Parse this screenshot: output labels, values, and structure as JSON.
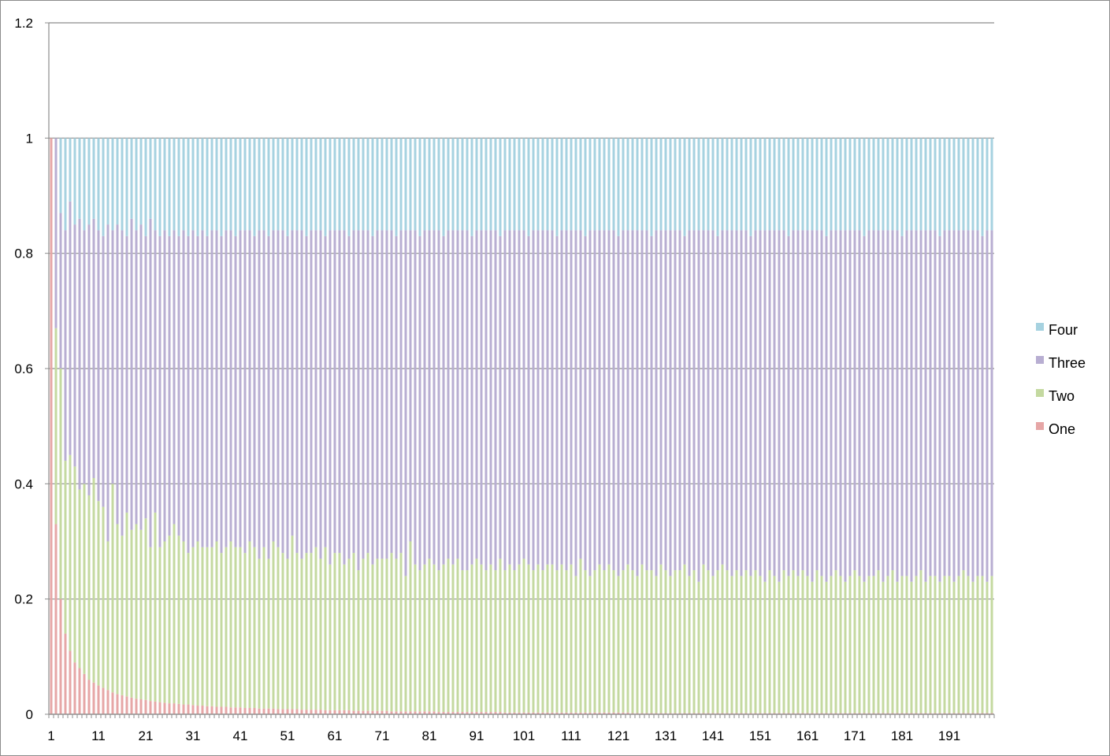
{
  "chart_data": {
    "type": "bar",
    "stacked": true,
    "normalized": true,
    "n_categories": 200,
    "x_tick_labels": [
      "1",
      "11",
      "21",
      "31",
      "41",
      "51",
      "61",
      "71",
      "81",
      "91",
      "101",
      "111",
      "121",
      "131",
      "141",
      "151",
      "161",
      "171",
      "181",
      "191"
    ],
    "y_tick_labels": [
      "0",
      "0.2",
      "0.4",
      "0.6",
      "0.8",
      "1",
      "1.2"
    ],
    "ylim": [
      0,
      1.2
    ],
    "grid": "horizontal",
    "legend_position": "right",
    "series": [
      {
        "name": "One",
        "color": "#e6a6a6"
      },
      {
        "name": "Two",
        "color": "#c4d9a0"
      },
      {
        "name": "Three",
        "color": "#b8aed2"
      },
      {
        "name": "Four",
        "color": "#a6d2e0"
      }
    ],
    "one": [
      1,
      0.33,
      0.2,
      0.14,
      0.11,
      0.09,
      0.08,
      0.07,
      0.06,
      0.055,
      0.05,
      0.046,
      0.042,
      0.038,
      0.035,
      0.033,
      0.031,
      0.029,
      0.027,
      0.026,
      0.025,
      0.023,
      0.022,
      0.021,
      0.02,
      0.019,
      0.019,
      0.018,
      0.017,
      0.017,
      0.016,
      0.015,
      0.015,
      0.014,
      0.014,
      0.013,
      0.013,
      0.013,
      0.012,
      0.012,
      0.012,
      0.011,
      0.011,
      0.011,
      0.01,
      0.01,
      0.01,
      0.01,
      0.009,
      0.009,
      0.009,
      0.009,
      0.009,
      0.008,
      0.008,
      0.008,
      0.008,
      0.008,
      0.007,
      0.007,
      0.007,
      0.007,
      0.007,
      0.007,
      0.006,
      0.006,
      0.006,
      0.006,
      0.006,
      0.006,
      0.006,
      0.006,
      0.005,
      0.005,
      0.005,
      0.005,
      0.005,
      0.005,
      0.005,
      0.005,
      0.005,
      0.005,
      0.004,
      0.004,
      0.004,
      0.004,
      0.004,
      0.004,
      0.004,
      0.004,
      0.004,
      0.004,
      0.004,
      0.004,
      0.004,
      0.004,
      0.003,
      0.003,
      0.003,
      0.003,
      0.003,
      0.003,
      0.003,
      0.003,
      0.003,
      0.003,
      0.003,
      0.003,
      0.003,
      0.003,
      0.003,
      0.003,
      0.003,
      0.003,
      0.003,
      0.003,
      0.003,
      0.003,
      0.003,
      0.003,
      0.003,
      0.003,
      0.003,
      0.002,
      0.002,
      0.002,
      0.002,
      0.002,
      0.002,
      0.002,
      0.002,
      0.002,
      0.002,
      0.002,
      0.002,
      0.002,
      0.002,
      0.002,
      0.002,
      0.002,
      0.002,
      0.002,
      0.002,
      0.002,
      0.002,
      0.002,
      0.002,
      0.002,
      0.002,
      0.002,
      0.002,
      0.002,
      0.002,
      0.002,
      0.002,
      0.002,
      0.002,
      0.002,
      0.002,
      0.002,
      0.002,
      0.002,
      0.002,
      0.002,
      0.002,
      0.002,
      0.002,
      0.002,
      0.002,
      0.002,
      0.002,
      0.002,
      0.002,
      0.002,
      0.002,
      0.002,
      0.002,
      0.002,
      0.002,
      0.002,
      0.002,
      0.002,
      0.002,
      0.002,
      0.002,
      0.002,
      0.002,
      0.002,
      0.002,
      0.002,
      0.002,
      0.002,
      0.002,
      0.002,
      0.002,
      0.002,
      0.002,
      0.002,
      0.002,
      0.002,
      0.002,
      0.002,
      0.002,
      0.002,
      0.002,
      0.002
    ],
    "cum_two": [
      1,
      0.67,
      0.6,
      0.44,
      0.45,
      0.43,
      0.39,
      0.4,
      0.38,
      0.41,
      0.37,
      0.36,
      0.3,
      0.4,
      0.33,
      0.31,
      0.35,
      0.32,
      0.33,
      0.32,
      0.34,
      0.29,
      0.35,
      0.29,
      0.3,
      0.31,
      0.33,
      0.31,
      0.3,
      0.28,
      0.29,
      0.3,
      0.29,
      0.29,
      0.29,
      0.3,
      0.28,
      0.29,
      0.3,
      0.29,
      0.29,
      0.28,
      0.3,
      0.29,
      0.27,
      0.29,
      0.27,
      0.3,
      0.29,
      0.28,
      0.27,
      0.31,
      0.28,
      0.27,
      0.28,
      0.28,
      0.29,
      0.27,
      0.29,
      0.26,
      0.28,
      0.28,
      0.26,
      0.27,
      0.28,
      0.25,
      0.27,
      0.28,
      0.26,
      0.27,
      0.27,
      0.27,
      0.28,
      0.27,
      0.28,
      0.24,
      0.3,
      0.26,
      0.25,
      0.26,
      0.27,
      0.26,
      0.25,
      0.26,
      0.27,
      0.26,
      0.27,
      0.25,
      0.25,
      0.26,
      0.27,
      0.26,
      0.25,
      0.26,
      0.25,
      0.27,
      0.25,
      0.26,
      0.25,
      0.26,
      0.27,
      0.26,
      0.25,
      0.26,
      0.25,
      0.26,
      0.26,
      0.25,
      0.26,
      0.25,
      0.26,
      0.24,
      0.27,
      0.25,
      0.24,
      0.25,
      0.26,
      0.25,
      0.26,
      0.25,
      0.24,
      0.25,
      0.26,
      0.25,
      0.24,
      0.26,
      0.25,
      0.25,
      0.24,
      0.26,
      0.25,
      0.24,
      0.25,
      0.25,
      0.26,
      0.24,
      0.25,
      0.23,
      0.26,
      0.25,
      0.24,
      0.25,
      0.26,
      0.25,
      0.24,
      0.25,
      0.24,
      0.25,
      0.24,
      0.25,
      0.24,
      0.23,
      0.25,
      0.24,
      0.23,
      0.25,
      0.24,
      0.25,
      0.24,
      0.25,
      0.24,
      0.23,
      0.25,
      0.24,
      0.23,
      0.24,
      0.25,
      0.24,
      0.23,
      0.24,
      0.25,
      0.24,
      0.23,
      0.24,
      0.24,
      0.25,
      0.23,
      0.24,
      0.25,
      0.23,
      0.24,
      0.24,
      0.23,
      0.24,
      0.25,
      0.23,
      0.24,
      0.24,
      0.23,
      0.24,
      0.24,
      0.23,
      0.24,
      0.25,
      0.24,
      0.23,
      0.24,
      0.24,
      0.23,
      0.24,
      0.24,
      0.24
    ],
    "cum_three": [
      1,
      1,
      0.87,
      0.84,
      0.89,
      0.85,
      0.86,
      0.84,
      0.85,
      0.86,
      0.84,
      0.83,
      0.85,
      0.84,
      0.85,
      0.84,
      0.83,
      0.86,
      0.84,
      0.85,
      0.83,
      0.86,
      0.84,
      0.83,
      0.84,
      0.83,
      0.84,
      0.83,
      0.84,
      0.83,
      0.84,
      0.83,
      0.84,
      0.83,
      0.84,
      0.84,
      0.83,
      0.84,
      0.84,
      0.83,
      0.84,
      0.84,
      0.84,
      0.83,
      0.84,
      0.84,
      0.83,
      0.84,
      0.84,
      0.84,
      0.83,
      0.84,
      0.84,
      0.84,
      0.83,
      0.84,
      0.84,
      0.84,
      0.83,
      0.84,
      0.84,
      0.84,
      0.84,
      0.83,
      0.84,
      0.84,
      0.84,
      0.84,
      0.83,
      0.84,
      0.84,
      0.84,
      0.84,
      0.83,
      0.84,
      0.84,
      0.84,
      0.84,
      0.83,
      0.84,
      0.84,
      0.84,
      0.84,
      0.83,
      0.84,
      0.84,
      0.84,
      0.84,
      0.84,
      0.83,
      0.84,
      0.84,
      0.84,
      0.84,
      0.84,
      0.83,
      0.84,
      0.84,
      0.84,
      0.84,
      0.84,
      0.83,
      0.84,
      0.84,
      0.84,
      0.84,
      0.84,
      0.83,
      0.84,
      0.84,
      0.84,
      0.84,
      0.84,
      0.83,
      0.84,
      0.84,
      0.84,
      0.84,
      0.84,
      0.84,
      0.83,
      0.84,
      0.84,
      0.84,
      0.84,
      0.84,
      0.84,
      0.83,
      0.84,
      0.84,
      0.84,
      0.84,
      0.84,
      0.84,
      0.83,
      0.84,
      0.84,
      0.84,
      0.84,
      0.84,
      0.84,
      0.83,
      0.84,
      0.84,
      0.84,
      0.84,
      0.84,
      0.84,
      0.83,
      0.84,
      0.84,
      0.84,
      0.84,
      0.84,
      0.84,
      0.84,
      0.83,
      0.84,
      0.84,
      0.84,
      0.84,
      0.84,
      0.84,
      0.84,
      0.83,
      0.84,
      0.84,
      0.84,
      0.84,
      0.84,
      0.84,
      0.84,
      0.83,
      0.84,
      0.84,
      0.84,
      0.84,
      0.84,
      0.84,
      0.84,
      0.83,
      0.84,
      0.84,
      0.84,
      0.84,
      0.84,
      0.84,
      0.84,
      0.83,
      0.84,
      0.84,
      0.84,
      0.84,
      0.84,
      0.84,
      0.84,
      0.84,
      0.83,
      0.84,
      0.84,
      0.84,
      0.84
    ]
  }
}
